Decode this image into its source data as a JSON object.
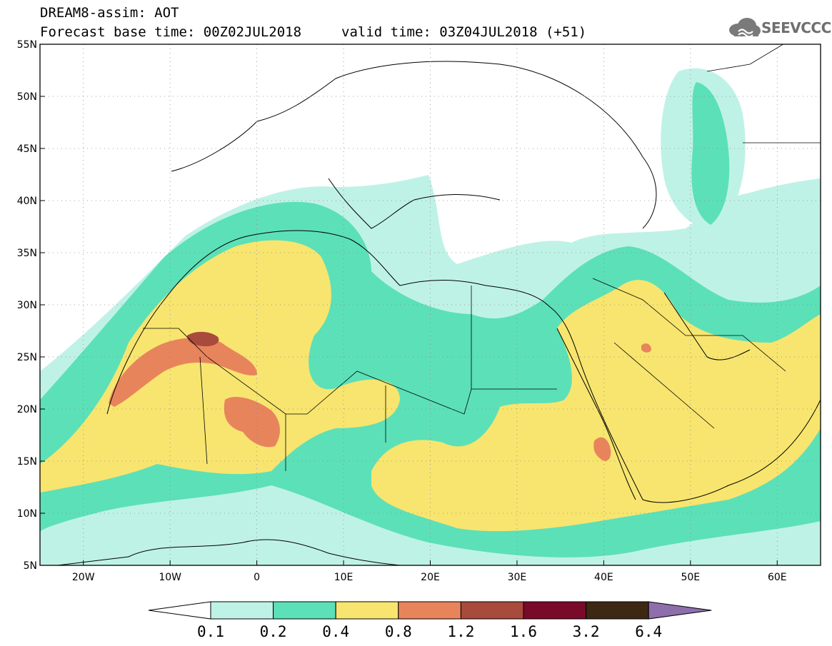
{
  "header": {
    "model_title": "DREAM8-assim: AOT",
    "base_time": "Forecast base time: 00Z02JUL2018",
    "valid_time": "valid time: 03Z04JUL2018 (+51)"
  },
  "logo": {
    "text": "SEEVCCC",
    "icon": "cloud-icon"
  },
  "map": {
    "lon_ticks": [
      "20W",
      "10W",
      "0",
      "10E",
      "20E",
      "30E",
      "40E",
      "50E",
      "60E"
    ],
    "lat_ticks": [
      "55N",
      "50N",
      "45N",
      "40N",
      "35N",
      "30N",
      "25N",
      "20N",
      "15N",
      "10N",
      "5N"
    ],
    "lon_range": [
      -25,
      65
    ],
    "lat_range": [
      5,
      55
    ],
    "grid": "dotted"
  },
  "colorbar": {
    "levels": [
      "0.1",
      "0.2",
      "0.4",
      "0.8",
      "1.2",
      "1.6",
      "3.2",
      "6.4"
    ],
    "colors": [
      "#bff2e6",
      "#5ce0b8",
      "#f7e56f",
      "#e8845c",
      "#a84a3c",
      "#7a0a2a",
      "#3d2814",
      "#8e6eab"
    ],
    "underflow_color": "#ffffff"
  }
}
